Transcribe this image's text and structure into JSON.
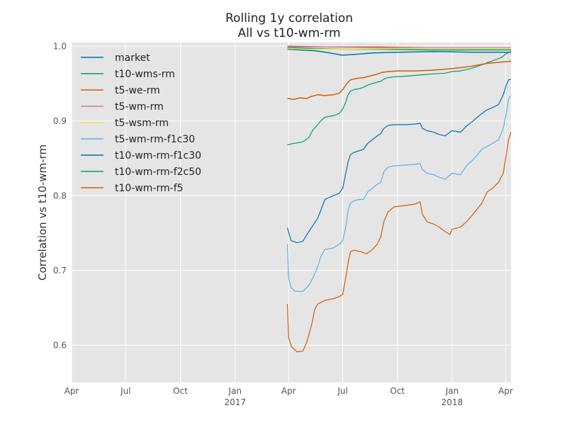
{
  "chart_data": {
    "type": "line",
    "title": "Rolling 1y correlation",
    "subtitle": "All vs t10-wm-rm",
    "ylabel": "Correlation vs t10-wm-rm",
    "xlabel": "",
    "x_range": [
      "2016-04-01",
      "2018-04-10"
    ],
    "ylim": [
      0.55,
      1.005
    ],
    "grid": true,
    "legend_position": "top-left",
    "x_ticks": [
      {
        "date": "2016-04-01",
        "label": "Apr",
        "year": ""
      },
      {
        "date": "2016-07-01",
        "label": "Jul",
        "year": ""
      },
      {
        "date": "2016-10-01",
        "label": "Oct",
        "year": ""
      },
      {
        "date": "2017-01-01",
        "label": "Jan",
        "year": "2017"
      },
      {
        "date": "2017-04-01",
        "label": "Apr",
        "year": ""
      },
      {
        "date": "2017-07-01",
        "label": "Jul",
        "year": ""
      },
      {
        "date": "2017-10-01",
        "label": "Oct",
        "year": ""
      },
      {
        "date": "2018-01-01",
        "label": "Jan",
        "year": "2018"
      },
      {
        "date": "2018-04-01",
        "label": "Apr",
        "year": ""
      }
    ],
    "y_ticks": [
      {
        "value": 0.6,
        "label": "0.6"
      },
      {
        "value": 0.7,
        "label": "0.7"
      },
      {
        "value": 0.8,
        "label": "0.8"
      },
      {
        "value": 0.9,
        "label": "0.9"
      },
      {
        "value": 1.0,
        "label": "1.0"
      }
    ],
    "series": [
      {
        "name": "market",
        "color": "#0072B2",
        "width": 1.5,
        "points": [
          [
            "2017-03-30",
            0.996
          ],
          [
            "2017-05-15",
            0.994
          ],
          [
            "2017-06-10",
            0.991
          ],
          [
            "2017-06-30",
            0.988
          ],
          [
            "2017-07-20",
            0.989
          ],
          [
            "2017-08-20",
            0.991
          ],
          [
            "2017-10-01",
            0.992
          ],
          [
            "2017-12-01",
            0.993
          ],
          [
            "2018-02-01",
            0.992
          ],
          [
            "2018-04-10",
            0.992
          ]
        ]
      },
      {
        "name": "t10-wms-rm",
        "color": "#009E73",
        "width": 1.5,
        "points": [
          [
            "2017-03-30",
            0.998
          ],
          [
            "2017-05-01",
            0.997
          ],
          [
            "2017-07-01",
            0.996
          ],
          [
            "2017-09-01",
            0.996
          ],
          [
            "2017-12-01",
            0.995
          ],
          [
            "2018-02-01",
            0.995
          ],
          [
            "2018-04-10",
            0.995
          ]
        ]
      },
      {
        "name": "t5-we-rm",
        "color": "#D55E00",
        "width": 1.5,
        "points": [
          [
            "2017-03-30",
            1.0
          ],
          [
            "2017-06-01",
            0.999
          ],
          [
            "2017-09-01",
            0.999
          ],
          [
            "2017-12-01",
            0.998
          ],
          [
            "2018-04-10",
            0.998
          ]
        ]
      },
      {
        "name": "t5-wm-rm",
        "color": "#CC79A7",
        "width": 1.5,
        "points": [
          [
            "2017-03-30",
            0.999
          ],
          [
            "2017-06-01",
            0.999
          ],
          [
            "2017-09-01",
            0.998
          ],
          [
            "2017-12-01",
            0.998
          ],
          [
            "2018-04-10",
            0.998
          ]
        ]
      },
      {
        "name": "t5-wsm-rm",
        "color": "#F0E442",
        "width": 1.5,
        "points": [
          [
            "2017-03-30",
            0.997
          ],
          [
            "2017-05-01",
            0.996
          ],
          [
            "2017-07-01",
            0.996
          ],
          [
            "2017-10-01",
            0.997
          ],
          [
            "2018-01-01",
            0.997
          ],
          [
            "2018-04-10",
            0.997
          ]
        ]
      },
      {
        "name": "t5-wm-rm-f1c30",
        "color": "#56B4E9",
        "width": 1.2,
        "points": [
          [
            "2017-03-30",
            0.735
          ],
          [
            "2017-04-01",
            0.69
          ],
          [
            "2017-04-05",
            0.677
          ],
          [
            "2017-04-12",
            0.672
          ],
          [
            "2017-04-25",
            0.672
          ],
          [
            "2017-05-05",
            0.68
          ],
          [
            "2017-05-12",
            0.69
          ],
          [
            "2017-05-20",
            0.705
          ],
          [
            "2017-05-25",
            0.718
          ],
          [
            "2017-06-01",
            0.728
          ],
          [
            "2017-06-15",
            0.73
          ],
          [
            "2017-06-25",
            0.735
          ],
          [
            "2017-07-01",
            0.74
          ],
          [
            "2017-07-06",
            0.758
          ],
          [
            "2017-07-10",
            0.78
          ],
          [
            "2017-07-14",
            0.79
          ],
          [
            "2017-07-20",
            0.793
          ],
          [
            "2017-07-28",
            0.795
          ],
          [
            "2017-08-05",
            0.795
          ],
          [
            "2017-08-12",
            0.805
          ],
          [
            "2017-08-20",
            0.81
          ],
          [
            "2017-08-28",
            0.815
          ],
          [
            "2017-09-03",
            0.818
          ],
          [
            "2017-09-08",
            0.832
          ],
          [
            "2017-09-15",
            0.838
          ],
          [
            "2017-09-25",
            0.84
          ],
          [
            "2017-10-15",
            0.841
          ],
          [
            "2017-11-01",
            0.842
          ],
          [
            "2017-11-08",
            0.843
          ],
          [
            "2017-11-12",
            0.835
          ],
          [
            "2017-11-20",
            0.83
          ],
          [
            "2017-12-01",
            0.828
          ],
          [
            "2017-12-10",
            0.825
          ],
          [
            "2017-12-20",
            0.822
          ],
          [
            "2018-01-01",
            0.83
          ],
          [
            "2018-01-15",
            0.828
          ],
          [
            "2018-01-25",
            0.84
          ],
          [
            "2018-02-05",
            0.848
          ],
          [
            "2018-02-20",
            0.862
          ],
          [
            "2018-03-01",
            0.866
          ],
          [
            "2018-03-10",
            0.87
          ],
          [
            "2018-03-20",
            0.875
          ],
          [
            "2018-03-28",
            0.89
          ],
          [
            "2018-04-02",
            0.91
          ],
          [
            "2018-04-06",
            0.93
          ],
          [
            "2018-04-10",
            0.934
          ]
        ]
      },
      {
        "name": "t10-wm-rm-f1c30",
        "color": "#0072B2",
        "width": 1.2,
        "points": [
          [
            "2017-03-30",
            0.757
          ],
          [
            "2017-04-05",
            0.74
          ],
          [
            "2017-04-15",
            0.737
          ],
          [
            "2017-04-25",
            0.739
          ],
          [
            "2017-05-02",
            0.748
          ],
          [
            "2017-05-10",
            0.758
          ],
          [
            "2017-05-20",
            0.77
          ],
          [
            "2017-05-25",
            0.78
          ],
          [
            "2017-06-01",
            0.795
          ],
          [
            "2017-06-15",
            0.8
          ],
          [
            "2017-06-25",
            0.803
          ],
          [
            "2017-07-01",
            0.81
          ],
          [
            "2017-07-06",
            0.83
          ],
          [
            "2017-07-10",
            0.845
          ],
          [
            "2017-07-14",
            0.855
          ],
          [
            "2017-07-20",
            0.858
          ],
          [
            "2017-07-28",
            0.86
          ],
          [
            "2017-08-05",
            0.862
          ],
          [
            "2017-08-12",
            0.87
          ],
          [
            "2017-08-20",
            0.875
          ],
          [
            "2017-08-28",
            0.88
          ],
          [
            "2017-09-03",
            0.883
          ],
          [
            "2017-09-08",
            0.89
          ],
          [
            "2017-09-15",
            0.894
          ],
          [
            "2017-09-25",
            0.895
          ],
          [
            "2017-10-15",
            0.895
          ],
          [
            "2017-11-01",
            0.896
          ],
          [
            "2017-11-08",
            0.897
          ],
          [
            "2017-11-12",
            0.89
          ],
          [
            "2017-11-20",
            0.887
          ],
          [
            "2017-12-01",
            0.885
          ],
          [
            "2017-12-10",
            0.882
          ],
          [
            "2017-12-20",
            0.88
          ],
          [
            "2018-01-01",
            0.887
          ],
          [
            "2018-01-15",
            0.885
          ],
          [
            "2018-01-25",
            0.893
          ],
          [
            "2018-02-05",
            0.9
          ],
          [
            "2018-02-20",
            0.91
          ],
          [
            "2018-03-01",
            0.915
          ],
          [
            "2018-03-10",
            0.918
          ],
          [
            "2018-03-20",
            0.922
          ],
          [
            "2018-03-28",
            0.935
          ],
          [
            "2018-04-02",
            0.948
          ],
          [
            "2018-04-06",
            0.955
          ],
          [
            "2018-04-10",
            0.956
          ]
        ]
      },
      {
        "name": "t10-wm-rm-f2c50",
        "color": "#009E73",
        "width": 1.2,
        "points": [
          [
            "2017-03-30",
            0.868
          ],
          [
            "2017-04-10",
            0.87
          ],
          [
            "2017-04-25",
            0.872
          ],
          [
            "2017-05-05",
            0.878
          ],
          [
            "2017-05-12",
            0.888
          ],
          [
            "2017-05-20",
            0.895
          ],
          [
            "2017-05-25",
            0.9
          ],
          [
            "2017-06-01",
            0.905
          ],
          [
            "2017-06-15",
            0.907
          ],
          [
            "2017-06-25",
            0.91
          ],
          [
            "2017-07-01",
            0.916
          ],
          [
            "2017-07-06",
            0.925
          ],
          [
            "2017-07-10",
            0.935
          ],
          [
            "2017-07-14",
            0.94
          ],
          [
            "2017-07-20",
            0.942
          ],
          [
            "2017-07-28",
            0.943
          ],
          [
            "2017-08-05",
            0.945
          ],
          [
            "2017-08-12",
            0.948
          ],
          [
            "2017-08-20",
            0.95
          ],
          [
            "2017-08-28",
            0.952
          ],
          [
            "2017-09-03",
            0.953
          ],
          [
            "2017-09-08",
            0.956
          ],
          [
            "2017-09-15",
            0.958
          ],
          [
            "2017-09-25",
            0.959
          ],
          [
            "2017-10-15",
            0.96
          ],
          [
            "2017-11-01",
            0.961
          ],
          [
            "2017-11-15",
            0.962
          ],
          [
            "2017-12-01",
            0.963
          ],
          [
            "2017-12-20",
            0.964
          ],
          [
            "2018-01-01",
            0.966
          ],
          [
            "2018-01-15",
            0.967
          ],
          [
            "2018-02-01",
            0.97
          ],
          [
            "2018-02-20",
            0.975
          ],
          [
            "2018-03-01",
            0.978
          ],
          [
            "2018-03-15",
            0.982
          ],
          [
            "2018-03-25",
            0.985
          ],
          [
            "2018-04-02",
            0.99
          ],
          [
            "2018-04-10",
            0.993
          ]
        ]
      },
      {
        "name": "t10-wm-rm-f5",
        "color": "#D55E00",
        "width": 1.2,
        "points": [
          [
            "2017-03-30",
            0.655
          ],
          [
            "2017-04-01",
            0.61
          ],
          [
            "2017-04-06",
            0.598
          ],
          [
            "2017-04-15",
            0.591
          ],
          [
            "2017-04-25",
            0.592
          ],
          [
            "2017-05-02",
            0.605
          ],
          [
            "2017-05-10",
            0.628
          ],
          [
            "2017-05-15",
            0.648
          ],
          [
            "2017-05-20",
            0.655
          ],
          [
            "2017-06-01",
            0.66
          ],
          [
            "2017-06-15",
            0.662
          ],
          [
            "2017-06-25",
            0.665
          ],
          [
            "2017-07-01",
            0.668
          ],
          [
            "2017-07-06",
            0.69
          ],
          [
            "2017-07-10",
            0.71
          ],
          [
            "2017-07-14",
            0.725
          ],
          [
            "2017-07-20",
            0.727
          ],
          [
            "2017-08-01",
            0.725
          ],
          [
            "2017-08-10",
            0.722
          ],
          [
            "2017-08-20",
            0.728
          ],
          [
            "2017-08-28",
            0.735
          ],
          [
            "2017-09-03",
            0.745
          ],
          [
            "2017-09-08",
            0.765
          ],
          [
            "2017-09-15",
            0.778
          ],
          [
            "2017-09-25",
            0.785
          ],
          [
            "2017-10-15",
            0.787
          ],
          [
            "2017-11-01",
            0.789
          ],
          [
            "2017-11-08",
            0.792
          ],
          [
            "2017-11-12",
            0.775
          ],
          [
            "2017-11-20",
            0.765
          ],
          [
            "2017-12-01",
            0.762
          ],
          [
            "2017-12-10",
            0.758
          ],
          [
            "2017-12-20",
            0.752
          ],
          [
            "2017-12-28",
            0.748
          ],
          [
            "2018-01-01",
            0.755
          ],
          [
            "2018-01-15",
            0.758
          ],
          [
            "2018-01-25",
            0.765
          ],
          [
            "2018-02-05",
            0.775
          ],
          [
            "2018-02-20",
            0.79
          ],
          [
            "2018-03-01",
            0.805
          ],
          [
            "2018-03-10",
            0.81
          ],
          [
            "2018-03-20",
            0.818
          ],
          [
            "2018-03-28",
            0.83
          ],
          [
            "2018-04-02",
            0.855
          ],
          [
            "2018-04-06",
            0.875
          ],
          [
            "2018-04-10",
            0.885
          ]
        ]
      },
      {
        "name": "t10-wm-rm-f5",
        "color": "#D55E00",
        "width": 1.5,
        "legend": false,
        "points": [
          [
            "2017-03-30",
            0.93
          ],
          [
            "2017-04-10",
            0.929
          ],
          [
            "2017-04-20",
            0.931
          ],
          [
            "2017-05-01",
            0.93
          ],
          [
            "2017-05-10",
            0.933
          ],
          [
            "2017-05-20",
            0.935
          ],
          [
            "2017-06-01",
            0.934
          ],
          [
            "2017-06-15",
            0.935
          ],
          [
            "2017-06-25",
            0.937
          ],
          [
            "2017-07-01",
            0.942
          ],
          [
            "2017-07-08",
            0.95
          ],
          [
            "2017-07-14",
            0.955
          ],
          [
            "2017-07-25",
            0.957
          ],
          [
            "2017-08-05",
            0.958
          ],
          [
            "2017-08-15",
            0.96
          ],
          [
            "2017-08-25",
            0.962
          ],
          [
            "2017-09-05",
            0.965
          ],
          [
            "2017-09-15",
            0.966
          ],
          [
            "2017-10-01",
            0.967
          ],
          [
            "2017-11-01",
            0.967
          ],
          [
            "2017-12-01",
            0.968
          ],
          [
            "2018-01-01",
            0.97
          ],
          [
            "2018-02-01",
            0.973
          ],
          [
            "2018-03-01",
            0.977
          ],
          [
            "2018-04-10",
            0.98
          ]
        ]
      }
    ]
  }
}
